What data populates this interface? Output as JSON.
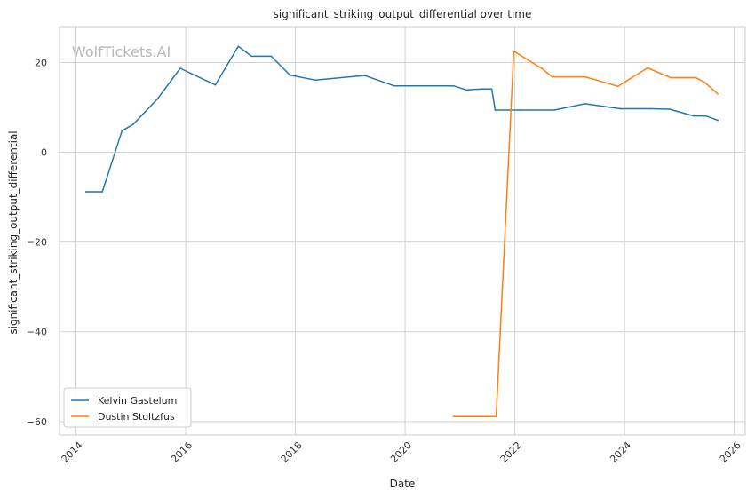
{
  "chart_data": {
    "type": "line",
    "title": "significant_striking_output_differential over time",
    "xlabel": "Date",
    "ylabel": "significant_striking_output_differential",
    "watermark": "WolfTickets.AI",
    "xlim": [
      2013.7,
      2026.2
    ],
    "ylim": [
      -63,
      28
    ],
    "xticks": [
      2014,
      2016,
      2018,
      2020,
      2022,
      2024,
      2026
    ],
    "xtick_labels": [
      "2014",
      "2016",
      "2018",
      "2020",
      "2022",
      "2024",
      "2026"
    ],
    "yticks": [
      20,
      0,
      -20,
      -40,
      -60
    ],
    "ytick_labels": [
      "20",
      "0",
      "−20",
      "−40",
      "−60"
    ],
    "grid": true,
    "legend_position": "lower-left",
    "series": [
      {
        "name": "Kelvin Gastelum",
        "color": "#1f77b4",
        "points": [
          [
            2014.18,
            -8.8
          ],
          [
            2014.48,
            -8.8
          ],
          [
            2014.84,
            4.8
          ],
          [
            2015.04,
            6.2
          ],
          [
            2015.48,
            11.8
          ],
          [
            2015.9,
            18.7
          ],
          [
            2016.54,
            15.0
          ],
          [
            2016.96,
            23.6
          ],
          [
            2017.2,
            21.4
          ],
          [
            2017.56,
            21.4
          ],
          [
            2017.9,
            17.2
          ],
          [
            2018.36,
            16.1
          ],
          [
            2019.26,
            17.1
          ],
          [
            2019.8,
            14.8
          ],
          [
            2020.48,
            14.8
          ],
          [
            2020.88,
            14.8
          ],
          [
            2021.12,
            13.9
          ],
          [
            2021.4,
            14.1
          ],
          [
            2021.58,
            14.1
          ],
          [
            2021.64,
            9.4
          ],
          [
            2022.1,
            9.4
          ],
          [
            2022.72,
            9.4
          ],
          [
            2023.28,
            10.8
          ],
          [
            2023.92,
            9.7
          ],
          [
            2024.48,
            9.7
          ],
          [
            2024.82,
            9.6
          ],
          [
            2025.26,
            8.1
          ],
          [
            2025.48,
            8.1
          ],
          [
            2025.7,
            7.1
          ]
        ]
      },
      {
        "name": "Dustin Stoltzfus",
        "color": "#ff7f0e",
        "points": [
          [
            2020.88,
            -58.9
          ],
          [
            2021.66,
            -58.9
          ],
          [
            2021.98,
            22.5
          ],
          [
            2022.5,
            18.6
          ],
          [
            2022.68,
            16.8
          ],
          [
            2023.28,
            16.8
          ],
          [
            2023.88,
            14.7
          ],
          [
            2024.42,
            18.8
          ],
          [
            2024.84,
            16.6
          ],
          [
            2025.3,
            16.6
          ],
          [
            2025.46,
            15.6
          ],
          [
            2025.7,
            13.0
          ]
        ]
      }
    ]
  }
}
